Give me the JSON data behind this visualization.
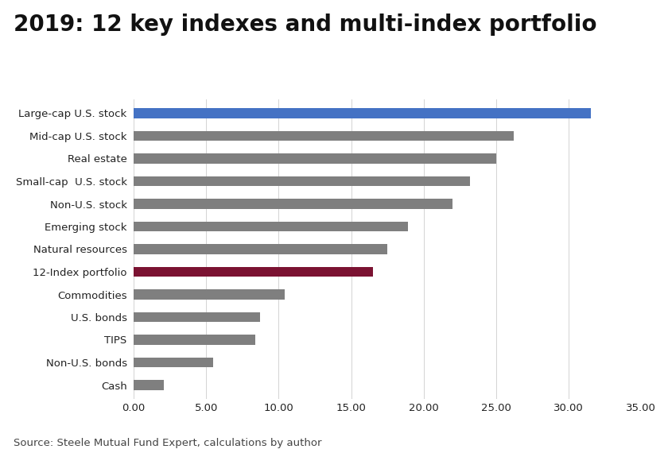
{
  "title": "2019: 12 key indexes and multi-index portfolio",
  "categories": [
    "Large-cap U.S. stock",
    "Mid-cap U.S. stock",
    "Real estate",
    "Small-cap  U.S. stock",
    "Non-U.S. stock",
    "Emerging stock",
    "Natural resources",
    "12-Index portfolio",
    "Commodities",
    "U.S. bonds",
    "TIPS",
    "Non-U.S. bonds",
    "Cash"
  ],
  "values": [
    31.5,
    26.2,
    25.0,
    23.2,
    22.0,
    18.9,
    17.5,
    16.5,
    10.4,
    8.7,
    8.4,
    5.5,
    2.1
  ],
  "bar_colors": [
    "#4472C4",
    "#7F7F7F",
    "#7F7F7F",
    "#7F7F7F",
    "#7F7F7F",
    "#7F7F7F",
    "#7F7F7F",
    "#7B1232",
    "#7F7F7F",
    "#7F7F7F",
    "#7F7F7F",
    "#7F7F7F",
    "#7F7F7F"
  ],
  "xlim": [
    0,
    35
  ],
  "xticks": [
    0.0,
    5.0,
    10.0,
    15.0,
    20.0,
    25.0,
    30.0,
    35.0
  ],
  "xtick_labels": [
    "0.00",
    "5.00",
    "10.00",
    "15.00",
    "20.00",
    "25.00",
    "30.00",
    "35.00"
  ],
  "source_text": "Source: Steele Mutual Fund Expert, calculations by author",
  "title_fontsize": 20,
  "tick_fontsize": 9.5,
  "label_fontsize": 9.5,
  "source_fontsize": 9.5,
  "background_color": "#FFFFFF",
  "bar_height": 0.45
}
